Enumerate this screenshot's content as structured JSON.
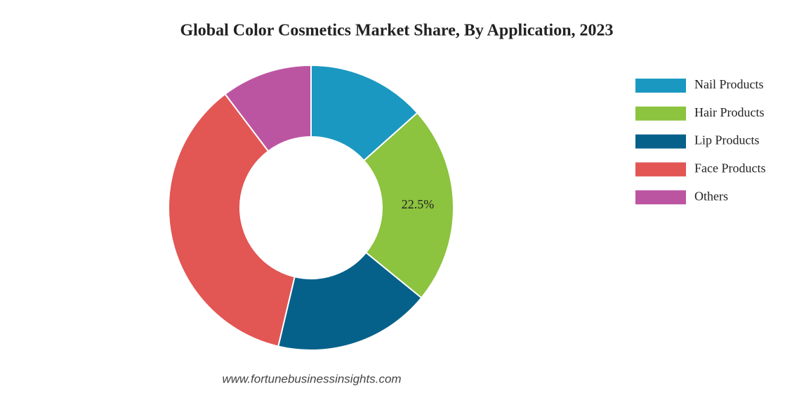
{
  "chart_data": {
    "type": "donut",
    "title": "Global Color Cosmetics Market Share, By Application, 2023",
    "categories": [
      "Nail Products",
      "Hair Products",
      "Lip Products",
      "Face Products",
      "Others"
    ],
    "values": [
      13.4,
      22.5,
      17.8,
      36,
      10.3
    ],
    "value_labels": [
      null,
      "22.5%",
      null,
      null,
      null
    ],
    "colors": [
      "#1b98c1",
      "#8cc33f",
      "#05618a",
      "#e25654",
      "#bc55a1"
    ],
    "legend": "right",
    "source": "www.fortunebusinessinsights.com"
  }
}
